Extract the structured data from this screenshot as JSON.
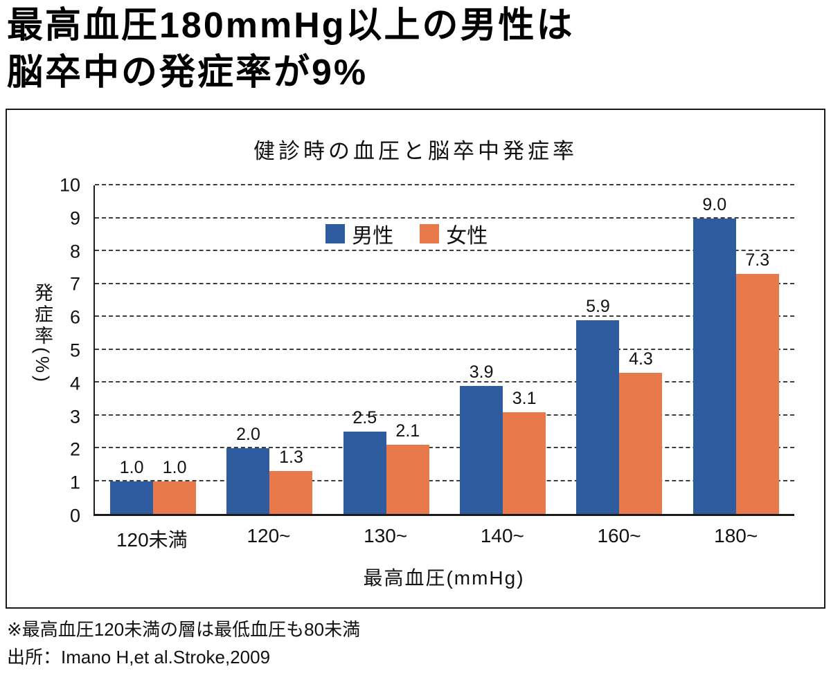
{
  "header": {
    "title_line1": "最高血圧180mmHg以上の男性は",
    "title_line2": "脳卒中の発症率が9%"
  },
  "chart_data": {
    "type": "bar",
    "title": "健診時の血圧と脳卒中発症率",
    "categories": [
      "120未満",
      "120~",
      "130~",
      "140~",
      "160~",
      "180~"
    ],
    "series": [
      {
        "key": "male",
        "name": "男性",
        "color": "#2e5c9e",
        "values": [
          1.0,
          2.0,
          2.5,
          3.9,
          5.9,
          9.0
        ]
      },
      {
        "key": "female",
        "name": "女性",
        "color": "#e8794b",
        "values": [
          1.0,
          1.3,
          2.1,
          3.1,
          4.3,
          7.3
        ]
      }
    ],
    "xlabel": "最高血圧(mmHg)",
    "ylabel": "発症率(%)",
    "ylim": [
      0,
      10
    ],
    "ytick_step": 1,
    "grid": "dashed-horizontal",
    "legend_position": "top-center-inside"
  },
  "footer": {
    "note": "※最高血圧120未満の層は最低血圧も80未満",
    "source": "出所：Imano H,et al.Stroke,2009"
  }
}
